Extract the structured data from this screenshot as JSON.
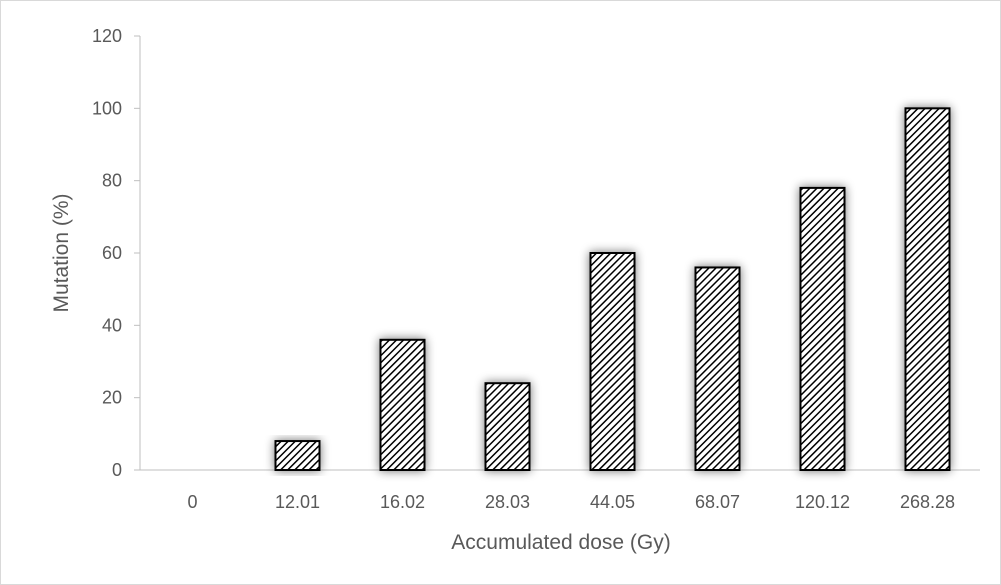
{
  "chart_data": {
    "type": "bar",
    "categories": [
      "0",
      "12.01",
      "16.02",
      "28.03",
      "44.05",
      "68.07",
      "120.12",
      "268.28"
    ],
    "values": [
      0,
      8,
      36,
      24,
      60,
      56,
      78,
      100
    ],
    "xlabel": "Accumulated dose (Gy)",
    "ylabel": "Mutation (%)",
    "ylim": [
      0,
      120
    ],
    "yticks": [
      "0",
      "20",
      "40",
      "60",
      "80",
      "100",
      "120"
    ],
    "grid": false,
    "legend": "none",
    "bar_pattern": "diagonal-hatch",
    "colors": {
      "bar_fill": "#ffffff",
      "bar_hatch": "#000000",
      "bar_edge": "#000000",
      "axis": "#bfbfbf",
      "text": "#595959"
    }
  }
}
